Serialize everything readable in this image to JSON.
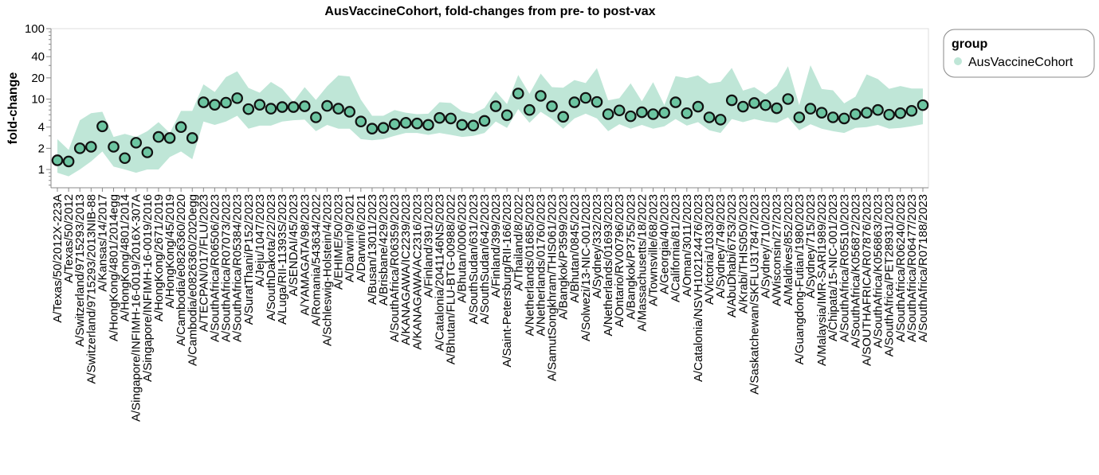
{
  "chart_data": {
    "type": "scatter",
    "title": "AusVaccineCohort, fold-changes from pre- to post-vax",
    "ylabel": "fold-change",
    "xlabel": "",
    "yscale": "log",
    "ylim": [
      0.55,
      100
    ],
    "yticks": [
      1,
      2,
      4,
      10,
      20,
      40,
      100
    ],
    "grid": false,
    "legend": {
      "title": "group",
      "placement": "top-right",
      "entries": [
        "AusVaccineCohort"
      ]
    },
    "colors": {
      "point_fill": "#6cc5a1",
      "band_fill": "#bfe6d7",
      "point_stroke": "#111111",
      "axis": "#888888",
      "frame": "#dddddd"
    },
    "categories": [
      "A/Texas/50/2012X-223A",
      "A/Texas/50/2012",
      "A/Switzerland/9715293/2013",
      "A/Switzerland/9715293/2013NIB-88",
      "A/Kansas/14/2017",
      "A/HongKong/4801/2014egg",
      "A/HongKong/4801/2014",
      "A/Singapore/INFIMH-16-0019/2016X-307A",
      "A/Singapore/INFIMH-16-0019/2016",
      "A/HongKong/2671/2019",
      "A/HongKong/45/2019",
      "A/Cambodia/e0826360/2020",
      "A/Cambodia/e0826360/2020egg",
      "A/TECPAN/017/FLU/2023",
      "A/SouthAfrica/R06506/2023",
      "A/SouthAfrica/R07073/2023",
      "A/SouthAfrica/R05384/2023",
      "A/SuratThani/P152/2023",
      "A/Jeju/1047/2023",
      "A/SouthDakota/22/2023",
      "A/Luga/RII-11393S/2023",
      "A/SENDAI/45/2023",
      "A/YAMAGATA/98/2023",
      "A/Romania/543634/2022",
      "A/Schleswig-Holstein/4/2023",
      "A/EHIME/50/2023",
      "A/Darwin/9/2021",
      "A/Darwin/6/2021",
      "A/Busan/13011/2023",
      "A/Brisbane/429/2023",
      "A/SouthAfrica/R06359/2023",
      "A/KANAGAWA/IC2239/2023",
      "A/KANAGAWA/AC2316/2023",
      "A/Finland/391/2023",
      "A/Catalonia/2041146NS/2023",
      "A/Bhutan/FLU-BTG-00988/2022",
      "A/Bhutan/0006/2023",
      "A/SouthSudan/631/2023",
      "A/SouthSudan/642/2023",
      "A/Finland/399/2023",
      "A/Saint-Petersburg/RII-166/2023",
      "A/Thailand/8/2022",
      "A/Netherlands/01685/2023",
      "A/Netherlands/01760/2023",
      "A/SamutSongkhram/THIS061/2023",
      "A/Bangkok/P3599/2023",
      "A/Bhutan/0845/2023",
      "A/Solwezi/13-NIC-001/2023",
      "A/Sydney/332/2023",
      "A/Netherlands/01693/2023",
      "A/Ontario/RV00796/2023",
      "A/Bangkok/P3755/2023",
      "A/Massachusetts/18/2022",
      "A/Townsville/68/2023",
      "A/Georgia/40/2023",
      "A/California/81/2023",
      "A/Oman/3011/2023",
      "A/Catalonia/NSVH102124476/2023",
      "A/Victoria/1033/2023",
      "A/Sydney/749/2023",
      "A/AbuDhabi/6753/2023",
      "A/Krabi/THIS050/2023",
      "A/Saskatchewan/SKFLU317847/2023",
      "A/Sydney/710/2023",
      "A/Wisconsin/27/2023",
      "A/Maldives/852/2023",
      "A/Guangdong-Futian/1980/2023",
      "A/Sydney/715/2023",
      "A/Malaysia/IMR-SARI1989/2023",
      "A/Chipata/15-NIC-001/2023",
      "A/SouthAfrica/R05510/2023",
      "A/SouthAfrica/K056872/2023",
      "A/SOUTHAFRICA/R07876/2023",
      "A/SouthAfrica/K056863/2023",
      "A/SouthAfrica/PET28931/2023",
      "A/SouthAfrica/R06240/2023",
      "A/SouthAfrica/R06477/2023",
      "A/SouthAfrica/R07188/2023"
    ],
    "series": [
      {
        "name": "AusVaccineCohort",
        "values": [
          1.35,
          1.3,
          2.0,
          2.1,
          4.1,
          2.1,
          1.45,
          2.4,
          1.75,
          2.9,
          2.8,
          4.0,
          2.8,
          9.0,
          8.3,
          8.9,
          10.3,
          7.2,
          8.3,
          7.3,
          7.7,
          7.7,
          7.9,
          5.5,
          8.0,
          7.3,
          6.6,
          4.8,
          3.8,
          3.9,
          4.4,
          4.6,
          4.5,
          4.3,
          5.4,
          5.3,
          4.3,
          4.2,
          4.9,
          7.9,
          5.9,
          12.0,
          7.0,
          11.1,
          7.9,
          5.6,
          9.0,
          10.4,
          9.1,
          6.1,
          6.9,
          5.7,
          6.5,
          6.1,
          6.4,
          9.0,
          6.3,
          7.8,
          5.5,
          5.1,
          9.6,
          7.8,
          8.8,
          8.2,
          7.4,
          10.0,
          5.5,
          7.3,
          6.4,
          5.5,
          5.3,
          6.1,
          6.4,
          7.0,
          6.0,
          6.3,
          6.8,
          8.2
        ],
        "lower": [
          0.9,
          0.8,
          1.0,
          1.3,
          1.8,
          1.1,
          1.0,
          0.9,
          1.0,
          1.0,
          1.5,
          1.8,
          1.4,
          4.8,
          4.3,
          4.8,
          5.8,
          3.8,
          4.2,
          4.2,
          4.8,
          5.0,
          5.1,
          3.5,
          4.3,
          3.8,
          3.8,
          2.7,
          2.6,
          2.7,
          3.0,
          3.3,
          3.3,
          3.1,
          3.3,
          3.1,
          2.9,
          3.0,
          3.3,
          4.8,
          3.9,
          7.2,
          4.6,
          6.6,
          5.2,
          3.8,
          5.3,
          6.2,
          5.3,
          3.5,
          4.4,
          3.8,
          4.3,
          3.8,
          4.1,
          5.2,
          4.2,
          4.7,
          3.6,
          3.3,
          5.2,
          4.7,
          5.2,
          4.8,
          4.6,
          5.5,
          3.6,
          4.4,
          3.8,
          3.5,
          3.3,
          3.9,
          4.0,
          4.3,
          3.8,
          3.9,
          4.1,
          4.4
        ],
        "upper": [
          2.7,
          1.9,
          5.0,
          6.3,
          6.6,
          2.9,
          3.2,
          2.9,
          3.5,
          4.7,
          3.3,
          6.8,
          6.8,
          16.2,
          12.6,
          20.5,
          24.8,
          14.4,
          12.3,
          17.5,
          14.0,
          9.1,
          14.8,
          9.7,
          15.2,
          21.7,
          20.9,
          9.8,
          5.8,
          5.8,
          7.0,
          6.4,
          6.1,
          6.2,
          9.0,
          8.8,
          6.7,
          6.2,
          7.5,
          12.9,
          8.5,
          22.0,
          11.9,
          23.0,
          14.8,
          14.5,
          18.6,
          16.9,
          27.5,
          9.6,
          10.3,
          16.7,
          9.3,
          17.4,
          8.2,
          21.2,
          19.8,
          21.7,
          16.6,
          17.6,
          27.7,
          13.2,
          14.8,
          11.6,
          15.3,
          29.3,
          8.2,
          30.2,
          13.9,
          13.3,
          8.7,
          10.8,
          22.4,
          19.2,
          14.0,
          15.3,
          14.1,
          14.1
        ]
      }
    ]
  }
}
